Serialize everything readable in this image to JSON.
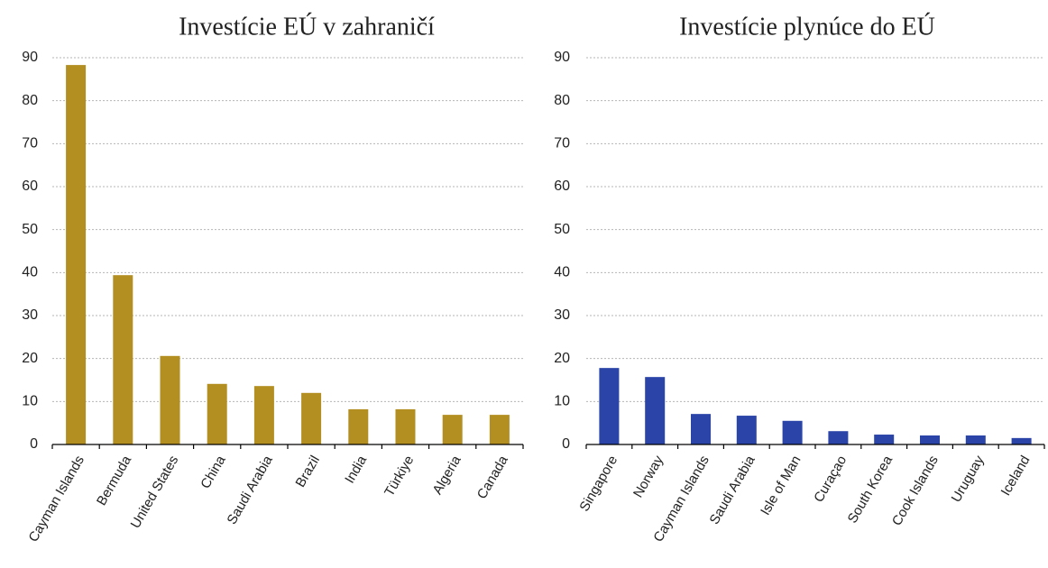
{
  "chart_data": [
    {
      "type": "bar",
      "title": "Investície EÚ v zahraničí",
      "categories": [
        "Cayman Islands",
        "Bermuda",
        "United States",
        "China",
        "Saudi Arabia",
        "Brazil",
        "India",
        "Türkiye",
        "Algeria",
        "Canada"
      ],
      "values": [
        88.3,
        39.4,
        20.6,
        14.1,
        13.6,
        12.0,
        8.2,
        8.2,
        6.9,
        6.9
      ],
      "color": "#b38f22",
      "ylim": [
        0,
        90
      ],
      "yticks": [
        0,
        10,
        20,
        30,
        40,
        50,
        60,
        70,
        80,
        90
      ],
      "grid": true
    },
    {
      "type": "bar",
      "title": "Investície plynúce do EÚ",
      "categories": [
        "Singapore",
        "Norway",
        "Cayman Islands",
        "Saudi Arabia",
        "Isle of Man",
        "Curaçao",
        "South Korea",
        "Cook Islands",
        "Uruguay",
        "Iceland"
      ],
      "values": [
        17.8,
        15.7,
        7.1,
        6.7,
        5.5,
        3.1,
        2.3,
        2.1,
        2.1,
        1.5
      ],
      "color": "#2a44a8",
      "ylim": [
        0,
        90
      ],
      "yticks": [
        0,
        10,
        20,
        30,
        40,
        50,
        60,
        70,
        80,
        90
      ],
      "grid": true
    }
  ]
}
